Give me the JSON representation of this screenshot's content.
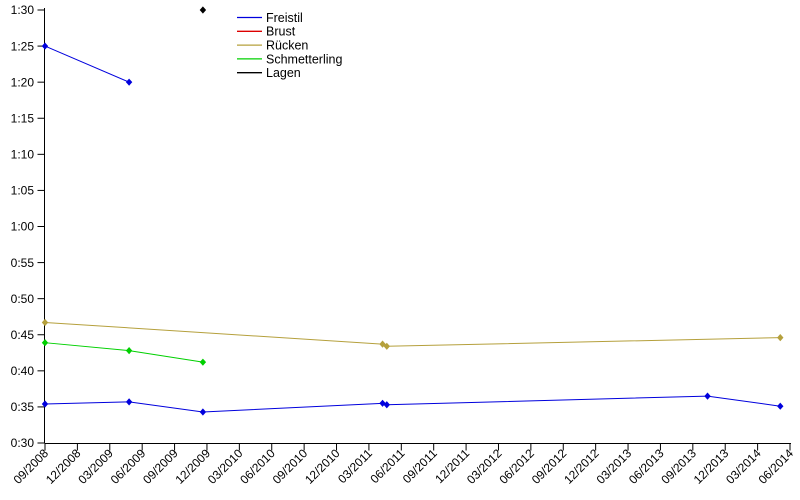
{
  "chart_data": {
    "type": "line",
    "title": "",
    "xlabel": "",
    "ylabel": "",
    "background": "#ffffff",
    "grid": false,
    "legend_position": "top-inside-left",
    "marker": "filled-diamond",
    "axis_color": "#000000",
    "x_axis": {
      "type": "date",
      "range": [
        "2008-09-01",
        "2014-06-01"
      ],
      "tick_rotation_deg": -45,
      "tick_labels": [
        "09/2008",
        "12/2008",
        "03/2009",
        "06/2009",
        "09/2009",
        "12/2009",
        "03/2010",
        "06/2010",
        "09/2010",
        "12/2010",
        "03/2011",
        "06/2011",
        "09/2011",
        "12/2011",
        "03/2012",
        "06/2012",
        "09/2012",
        "12/2012",
        "03/2013",
        "06/2013",
        "09/2013",
        "12/2013",
        "03/2014",
        "06/2014"
      ]
    },
    "y_axis": {
      "unit": "time m:ss",
      "range_seconds": [
        30,
        90
      ],
      "tick_step_seconds": 5,
      "tick_labels": [
        "0:30",
        "0:35",
        "0:40",
        "0:45",
        "0:50",
        "0:55",
        "1:00",
        "1:05",
        "1:10",
        "1:15",
        "1:20",
        "1:25",
        "1:30"
      ]
    },
    "series": [
      {
        "name": "Freistil",
        "color": "#0000dd",
        "segments": [
          [
            {
              "date": "2008-09-01",
              "seconds": 85.0
            },
            {
              "date": "2009-04-25",
              "seconds": 80.0
            }
          ],
          [
            {
              "date": "2008-09-01",
              "seconds": 35.4
            },
            {
              "date": "2009-04-25",
              "seconds": 35.7
            },
            {
              "date": "2009-11-20",
              "seconds": 34.3
            },
            {
              "date": "2011-04-09",
              "seconds": 35.5
            },
            {
              "date": "2011-04-21",
              "seconds": 35.3
            },
            {
              "date": "2013-10-12",
              "seconds": 36.5
            },
            {
              "date": "2014-05-04",
              "seconds": 35.1
            }
          ]
        ]
      },
      {
        "name": "Brust",
        "color": "#dd0000",
        "segments": []
      },
      {
        "name": "Rücken",
        "color": "#b5a03c",
        "segments": [
          [
            {
              "date": "2008-09-01",
              "seconds": 46.7
            },
            {
              "date": "2011-04-09",
              "seconds": 43.7
            },
            {
              "date": "2011-04-21",
              "seconds": 43.4
            },
            {
              "date": "2014-05-04",
              "seconds": 44.6
            }
          ]
        ]
      },
      {
        "name": "Schmetterling",
        "color": "#00d000",
        "segments": [
          [
            {
              "date": "2008-09-01",
              "seconds": 43.9
            },
            {
              "date": "2009-04-25",
              "seconds": 42.8
            },
            {
              "date": "2009-11-20",
              "seconds": 41.2
            }
          ]
        ]
      },
      {
        "name": "Lagen",
        "color": "#000000",
        "segments": [
          [
            {
              "date": "2009-11-20",
              "seconds": 90.0
            }
          ]
        ]
      }
    ]
  }
}
